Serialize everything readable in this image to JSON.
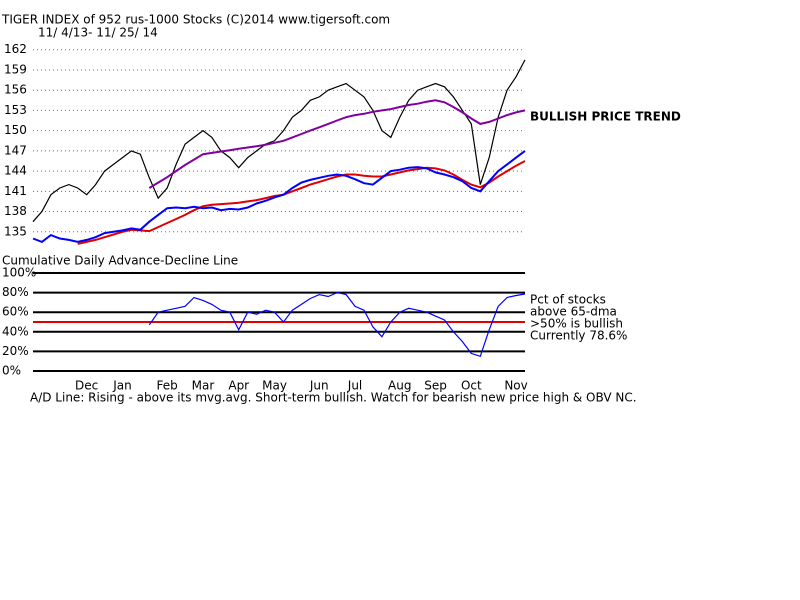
{
  "chart_data": [
    {
      "type": "line",
      "title": "TIGER INDEX of  952 rus-1000 Stocks  (C)2014  www.tigersoft.com",
      "subtitle": "11/ 4/13- 11/ 25/ 14",
      "annotation": "BULLISH PRICE TREND",
      "lower_label": "Cumulative Daily Advance-Decline Line",
      "categories": [
        null,
        null,
        null,
        null,
        null,
        null,
        "Dec",
        null,
        null,
        null,
        "Jan",
        null,
        null,
        null,
        null,
        "Feb",
        null,
        null,
        null,
        "Mar",
        null,
        null,
        null,
        "Apr",
        null,
        null,
        null,
        "May",
        null,
        null,
        null,
        null,
        "Jun",
        null,
        null,
        null,
        "Jul",
        null,
        null,
        null,
        null,
        "Aug",
        null,
        null,
        null,
        "Sep",
        null,
        null,
        null,
        "Oct",
        null,
        null,
        null,
        null,
        "Nov",
        null
      ],
      "ylim": [
        132,
        163
      ],
      "yticks": [
        135,
        138,
        141,
        144,
        147,
        150,
        153,
        156,
        159,
        162
      ],
      "grid": true,
      "grid_color": "#2e9a2e",
      "series": [
        {
          "color": "#000000",
          "values": [
            136.5,
            138,
            140.5,
            141.5,
            142,
            141.5,
            140.5,
            142,
            144,
            145,
            146,
            147,
            146.5,
            143,
            140,
            141.5,
            145,
            148,
            149,
            150,
            149,
            147,
            146,
            144.5,
            146,
            147,
            148,
            148.5,
            150,
            152,
            153,
            154.5,
            155,
            156,
            156.5,
            157,
            156,
            155,
            153,
            150,
            149,
            152,
            154.5,
            156,
            156.5,
            157,
            156.5,
            155,
            153,
            151,
            142,
            146,
            152,
            156,
            158,
            160.5
          ]
        },
        {
          "color": "#e00000",
          "values": [
            null,
            null,
            null,
            null,
            null,
            133.2,
            133.5,
            133.8,
            134.2,
            134.6,
            135,
            135.3,
            135.2,
            135.1,
            135.7,
            136.3,
            136.9,
            137.5,
            138.2,
            138.8,
            139,
            139.1,
            139.2,
            139.3,
            139.5,
            139.7,
            140,
            140.3,
            140.5,
            141,
            141.5,
            142,
            142.4,
            142.8,
            143.2,
            143.5,
            143.5,
            143.3,
            143.2,
            143.2,
            143.5,
            143.8,
            144.1,
            144.3,
            144.5,
            144.4,
            144.1,
            143.5,
            142.7,
            142,
            141.6,
            142.3,
            143.2,
            144,
            144.8,
            145.5
          ]
        },
        {
          "color": "#8000a0",
          "values": [
            null,
            null,
            null,
            null,
            null,
            null,
            null,
            null,
            null,
            null,
            null,
            null,
            null,
            141.5,
            142.3,
            143.1,
            144,
            144.9,
            145.7,
            146.5,
            146.7,
            146.9,
            147.1,
            147.3,
            147.5,
            147.7,
            147.9,
            148.2,
            148.5,
            149,
            149.5,
            150,
            150.5,
            151,
            151.5,
            152,
            152.3,
            152.5,
            152.8,
            153,
            153.2,
            153.5,
            153.8,
            154,
            154.3,
            154.5,
            154.2,
            153.5,
            152.7,
            151.8,
            151,
            151.3,
            151.8,
            152.3,
            152.7,
            153
          ]
        },
        {
          "color": "#0000ff",
          "values": [
            134,
            133.5,
            134.5,
            134,
            133.8,
            133.5,
            133.8,
            134.2,
            134.8,
            135,
            135.2,
            135.5,
            135.3,
            136.5,
            137.5,
            138.5,
            138.6,
            138.5,
            138.7,
            138.5,
            138.6,
            138.2,
            138.4,
            138.3,
            138.6,
            139.2,
            139.6,
            140.1,
            140.5,
            141.5,
            142.3,
            142.7,
            143,
            143.3,
            143.5,
            143.3,
            142.8,
            142.2,
            142,
            143,
            144,
            144.2,
            144.5,
            144.6,
            144.4,
            143.8,
            143.5,
            143.1,
            142.5,
            141.5,
            141,
            142.5,
            144,
            145,
            146,
            147
          ]
        }
      ]
    },
    {
      "type": "line",
      "ylim": [
        0,
        100
      ],
      "yticks": [
        {
          "value": 0,
          "label": "0%"
        },
        {
          "value": 20,
          "label": "20%"
        },
        {
          "value": 40,
          "label": "40%"
        },
        {
          "value": 60,
          "label": "60%"
        },
        {
          "value": 80,
          "label": "80%"
        },
        {
          "value": 100,
          "label": "100%"
        }
      ],
      "reference_line": 50,
      "reference_color": "#e00000",
      "notes": [
        "Pct of stocks",
        "above 65-dma",
        ">50% is bullish",
        "Currently  78.6%"
      ],
      "footer": "A/D Line: Rising - above its mvg.avg.  Short-term bullish. Watch for bearish new price high & OBV NC.",
      "color": "#0000ff",
      "values": [
        null,
        null,
        null,
        null,
        null,
        null,
        null,
        null,
        null,
        null,
        null,
        null,
        null,
        47,
        60,
        62,
        64,
        66,
        75,
        72,
        68,
        62,
        60,
        42,
        60,
        58,
        62,
        60,
        50,
        62,
        68,
        74,
        78,
        76,
        80,
        78,
        66,
        62,
        45,
        35,
        50,
        60,
        64,
        62,
        60,
        56,
        52,
        40,
        30,
        18,
        15,
        42,
        66,
        75,
        77,
        78.6
      ]
    }
  ]
}
